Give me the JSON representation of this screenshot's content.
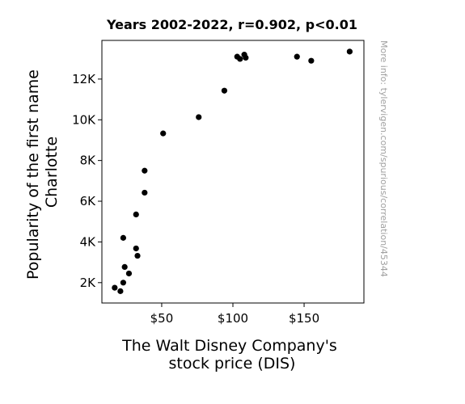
{
  "chart_data": {
    "type": "scatter",
    "title": "Years 2002-2022, r=0.902, p<0.01",
    "xlabel": [
      "The Walt Disney Company's",
      "stock price (DIS)"
    ],
    "ylabel": [
      "Popularity of the first name",
      "Charlotte"
    ],
    "watermark": "More info: tylervigen.com/spurious/correlation/45344",
    "xlim": [
      8,
      192
    ],
    "ylim": [
      1000,
      13900
    ],
    "xticks": [
      {
        "value": 50,
        "label": "$50"
      },
      {
        "value": 100,
        "label": "$100"
      },
      {
        "value": 150,
        "label": "$150"
      }
    ],
    "yticks": [
      {
        "value": 2000,
        "label": "2K"
      },
      {
        "value": 4000,
        "label": "4K"
      },
      {
        "value": 6000,
        "label": "6K"
      },
      {
        "value": 8000,
        "label": "8K"
      },
      {
        "value": 10000,
        "label": "10K"
      },
      {
        "value": 12000,
        "label": "12K"
      }
    ],
    "grid": false,
    "point_color": "#000000",
    "points": [
      {
        "x": 17,
        "y": 1750
      },
      {
        "x": 21,
        "y": 1580
      },
      {
        "x": 23,
        "y": 2000
      },
      {
        "x": 23,
        "y": 4200
      },
      {
        "x": 24,
        "y": 2770
      },
      {
        "x": 27,
        "y": 2450
      },
      {
        "x": 32,
        "y": 5350
      },
      {
        "x": 32,
        "y": 3680
      },
      {
        "x": 33,
        "y": 3320
      },
      {
        "x": 38,
        "y": 6420
      },
      {
        "x": 38,
        "y": 7500
      },
      {
        "x": 51,
        "y": 9330
      },
      {
        "x": 76,
        "y": 10130
      },
      {
        "x": 94,
        "y": 11430
      },
      {
        "x": 103,
        "y": 13100
      },
      {
        "x": 105,
        "y": 12990
      },
      {
        "x": 108,
        "y": 13200
      },
      {
        "x": 109,
        "y": 13050
      },
      {
        "x": 145,
        "y": 13100
      },
      {
        "x": 155,
        "y": 12900
      },
      {
        "x": 182,
        "y": 13350
      }
    ]
  }
}
